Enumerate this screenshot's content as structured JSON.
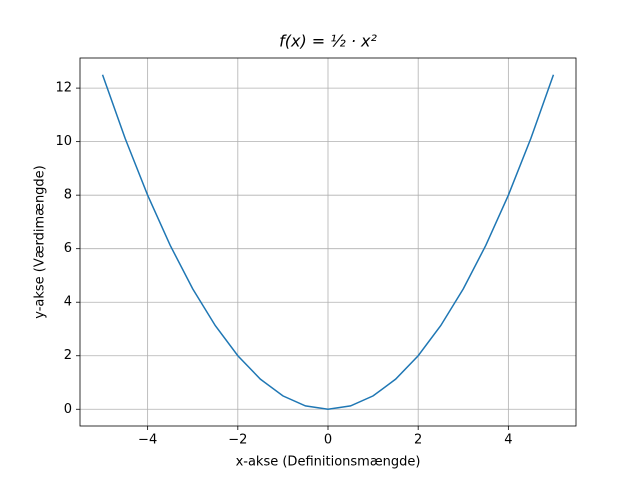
{
  "chart_data": {
    "type": "line",
    "title": "f(x) = ½ · x²",
    "x_label": "x-akse (Definitionsmængde)",
    "y_label": "y-akse (Værdimængde)",
    "x": [
      -5,
      -4.5,
      -4,
      -3.5,
      -3,
      -2.5,
      -2,
      -1.5,
      -1,
      -0.5,
      0,
      0.5,
      1,
      1.5,
      2,
      2.5,
      3,
      3.5,
      4,
      4.5,
      5
    ],
    "series": [
      {
        "name": "f(x)",
        "color": "#1f77b4",
        "values": [
          12.5,
          10.125,
          8,
          6.125,
          4.5,
          3.125,
          2,
          1.125,
          0.5,
          0.125,
          0,
          0.125,
          0.5,
          1.125,
          2,
          3.125,
          4.5,
          6.125,
          8,
          10.125,
          12.5
        ]
      }
    ],
    "xlim": [
      -5.5,
      5.5
    ],
    "ylim": [
      -0.625,
      13.125
    ],
    "xticks": [
      {
        "value": -4,
        "label": "−4"
      },
      {
        "value": -2,
        "label": "−2"
      },
      0,
      2,
      4
    ],
    "yticks": [
      0,
      2,
      4,
      6,
      8,
      10,
      12
    ],
    "grid": true
  }
}
